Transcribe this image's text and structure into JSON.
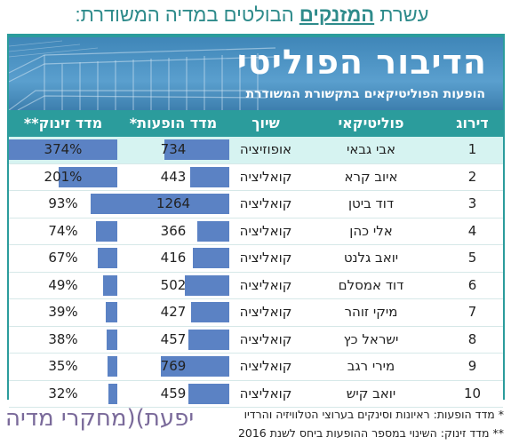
{
  "headline": {
    "pre": "עשרת ",
    "highlight": "המזנקים",
    "post": " הבולטים במדיה המשודרת:"
  },
  "banner": {
    "title": "הדיבור הפוליטי",
    "subtitle": "הופעות הפוליטיקאים בתקשורת המשודרת"
  },
  "columns": {
    "rank": "דירוג",
    "politician": "פוליטיקאי",
    "affiliation": "שיוך",
    "appearances": "מדד הופעות*",
    "jump": "מדד זינוק**"
  },
  "colors": {
    "frame": "#2b9c9c",
    "bar": "#5b82c4",
    "first_row": "#d6f3f1",
    "logo": "#7a6a9a",
    "headline": "#2e8b8b"
  },
  "chart_data": {
    "type": "table",
    "columns": [
      "דירוג",
      "פוליטיקאי",
      "שיוך",
      "מדד הופעות*",
      "מדד זינוק**"
    ],
    "rows": [
      {
        "rank": "1",
        "name": "אבי גבאי",
        "affiliation": "אופוזיציה",
        "appearances": 734,
        "appearances_label": "734",
        "jump": 374,
        "jump_label": "374%"
      },
      {
        "rank": "2",
        "name": "איוב קרא",
        "affiliation": "קואליציה",
        "appearances": 443,
        "appearances_label": "443",
        "jump": 201,
        "jump_label": "201%"
      },
      {
        "rank": "3",
        "name": "דוד ביטן",
        "affiliation": "קואליציה",
        "appearances": 1264,
        "appearances_label": "1264",
        "jump": 93,
        "jump_label": "93%"
      },
      {
        "rank": "4",
        "name": "אלי כהן",
        "affiliation": "קואליציה",
        "appearances": 366,
        "appearances_label": "366",
        "jump": 74,
        "jump_label": "74%"
      },
      {
        "rank": "5",
        "name": "יואב גלנט",
        "affiliation": "קואליציה",
        "appearances": 416,
        "appearances_label": "416",
        "jump": 67,
        "jump_label": "67%"
      },
      {
        "rank": "6",
        "name": "דוד אמסלם",
        "affiliation": "קואליציה",
        "appearances": 502,
        "appearances_label": "502",
        "jump": 49,
        "jump_label": "49%"
      },
      {
        "rank": "7",
        "name": "מיקי זוהר",
        "affiliation": "קואליציה",
        "appearances": 427,
        "appearances_label": "427",
        "jump": 39,
        "jump_label": "39%"
      },
      {
        "rank": "8",
        "name": "ישראל כץ",
        "affiliation": "קואליציה",
        "appearances": 457,
        "appearances_label": "457",
        "jump": 38,
        "jump_label": "38%"
      },
      {
        "rank": "9",
        "name": "מירי רגב",
        "affiliation": "קואליציה",
        "appearances": 769,
        "appearances_label": "769",
        "jump": 35,
        "jump_label": "35%"
      },
      {
        "rank": "10",
        "name": "יואב קיש",
        "affiliation": "קואליציה",
        "appearances": 459,
        "appearances_label": "459",
        "jump": 32,
        "jump_label": "32%"
      }
    ]
  },
  "footnotes": {
    "note1_mark": "*",
    "note1_text": "מדד הופעות: ראיונות וסינקים בערוצי הטלוויזיה והרדיו",
    "note2_mark": "**",
    "note2_text": "מדד זינוק: השינוי במספר ההופעות ביחס לשנת 2016"
  },
  "logo": {
    "left": "יפעת",
    "separator": ")(",
    "right": "מחקרי מדיה"
  }
}
